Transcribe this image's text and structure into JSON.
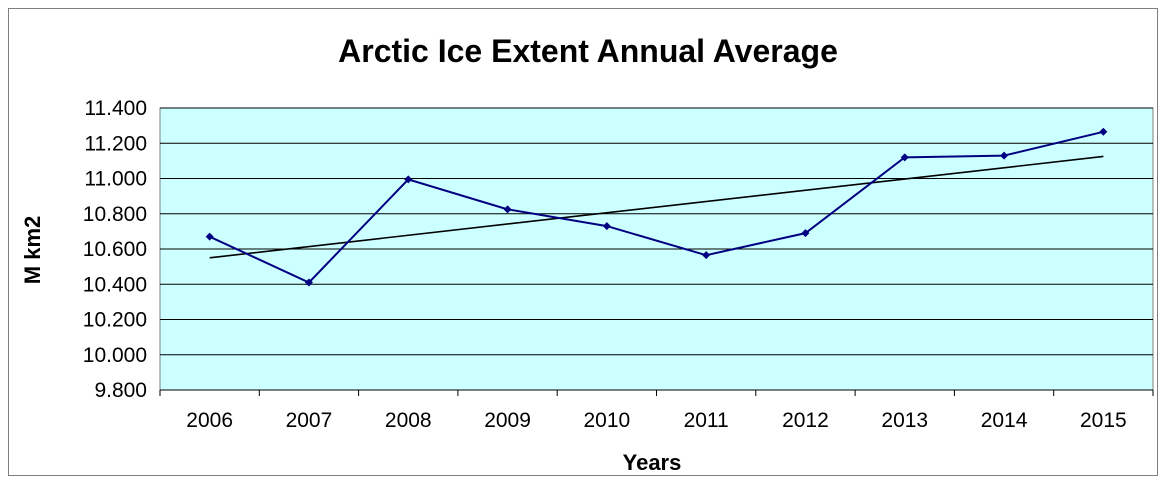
{
  "chart_data": {
    "type": "line",
    "title": "Arctic Ice Extent Annual Average",
    "xlabel": "Years",
    "ylabel": "M km2",
    "categories": [
      "2006",
      "2007",
      "2008",
      "2009",
      "2010",
      "2011",
      "2012",
      "2013",
      "2014",
      "2015"
    ],
    "series": [
      {
        "values": [
          10.67,
          10.41,
          10.995,
          10.825,
          10.73,
          10.565,
          10.69,
          11.12,
          11.13,
          11.265
        ]
      }
    ],
    "trendline": {
      "start": 10.55,
      "end": 11.125
    },
    "y_ticks": [
      "9.800",
      "10.000",
      "10.200",
      "10.400",
      "10.600",
      "10.800",
      "11.000",
      "11.200",
      "11.400"
    ],
    "ylim": [
      9.8,
      11.4
    ],
    "grid": true,
    "legend": "none",
    "colors": {
      "plot_background": "#ccffff",
      "series_line": "#000080",
      "trendline": "#000000",
      "gridline": "#000000"
    }
  }
}
